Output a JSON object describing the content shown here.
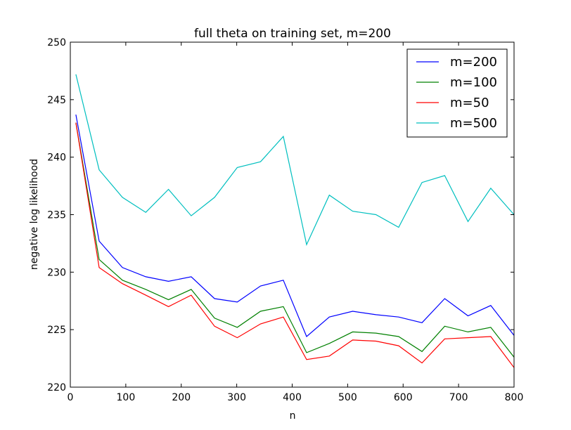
{
  "chart_data": {
    "type": "line",
    "title": "full theta on training set, m=200",
    "xlabel": "n",
    "ylabel": "negative log likelihood",
    "xlim": [
      0,
      800
    ],
    "ylim": [
      220,
      250
    ],
    "xticks": [
      0,
      100,
      200,
      300,
      400,
      500,
      600,
      700,
      800
    ],
    "yticks": [
      220,
      225,
      230,
      235,
      240,
      245,
      250
    ],
    "grid": false,
    "legend_position": "top-right",
    "x": [
      10,
      52,
      94,
      136,
      177,
      218,
      260,
      301,
      343,
      384,
      426,
      467,
      509,
      551,
      592,
      634,
      675,
      717,
      758,
      800
    ],
    "series": [
      {
        "name": "m=200",
        "color": "#0000ff",
        "values": [
          243.7,
          232.7,
          230.4,
          229.6,
          229.2,
          229.6,
          227.7,
          227.4,
          228.8,
          229.3,
          224.4,
          226.1,
          226.6,
          226.3,
          226.1,
          225.6,
          227.7,
          226.2,
          227.1,
          224.5
        ]
      },
      {
        "name": "m=100",
        "color": "#008000",
        "values": [
          243.0,
          231.1,
          229.3,
          228.5,
          227.6,
          228.5,
          226.0,
          225.2,
          226.6,
          227.0,
          223.0,
          223.8,
          224.8,
          224.7,
          224.4,
          223.1,
          225.3,
          224.8,
          225.2,
          222.6
        ]
      },
      {
        "name": "m=50",
        "color": "#ff0000",
        "values": [
          243.0,
          230.4,
          229.0,
          228.0,
          227.0,
          228.0,
          225.3,
          224.3,
          225.5,
          226.1,
          222.4,
          222.7,
          224.1,
          224.0,
          223.6,
          222.1,
          224.2,
          224.3,
          224.4,
          221.7
        ]
      },
      {
        "name": "m=500",
        "color": "#00bfbf",
        "values": [
          247.2,
          238.9,
          236.5,
          235.2,
          237.2,
          234.9,
          236.5,
          239.1,
          239.6,
          241.8,
          232.4,
          236.7,
          235.3,
          235.0,
          233.9,
          237.8,
          238.4,
          234.4,
          237.3,
          235.0
        ]
      }
    ]
  }
}
